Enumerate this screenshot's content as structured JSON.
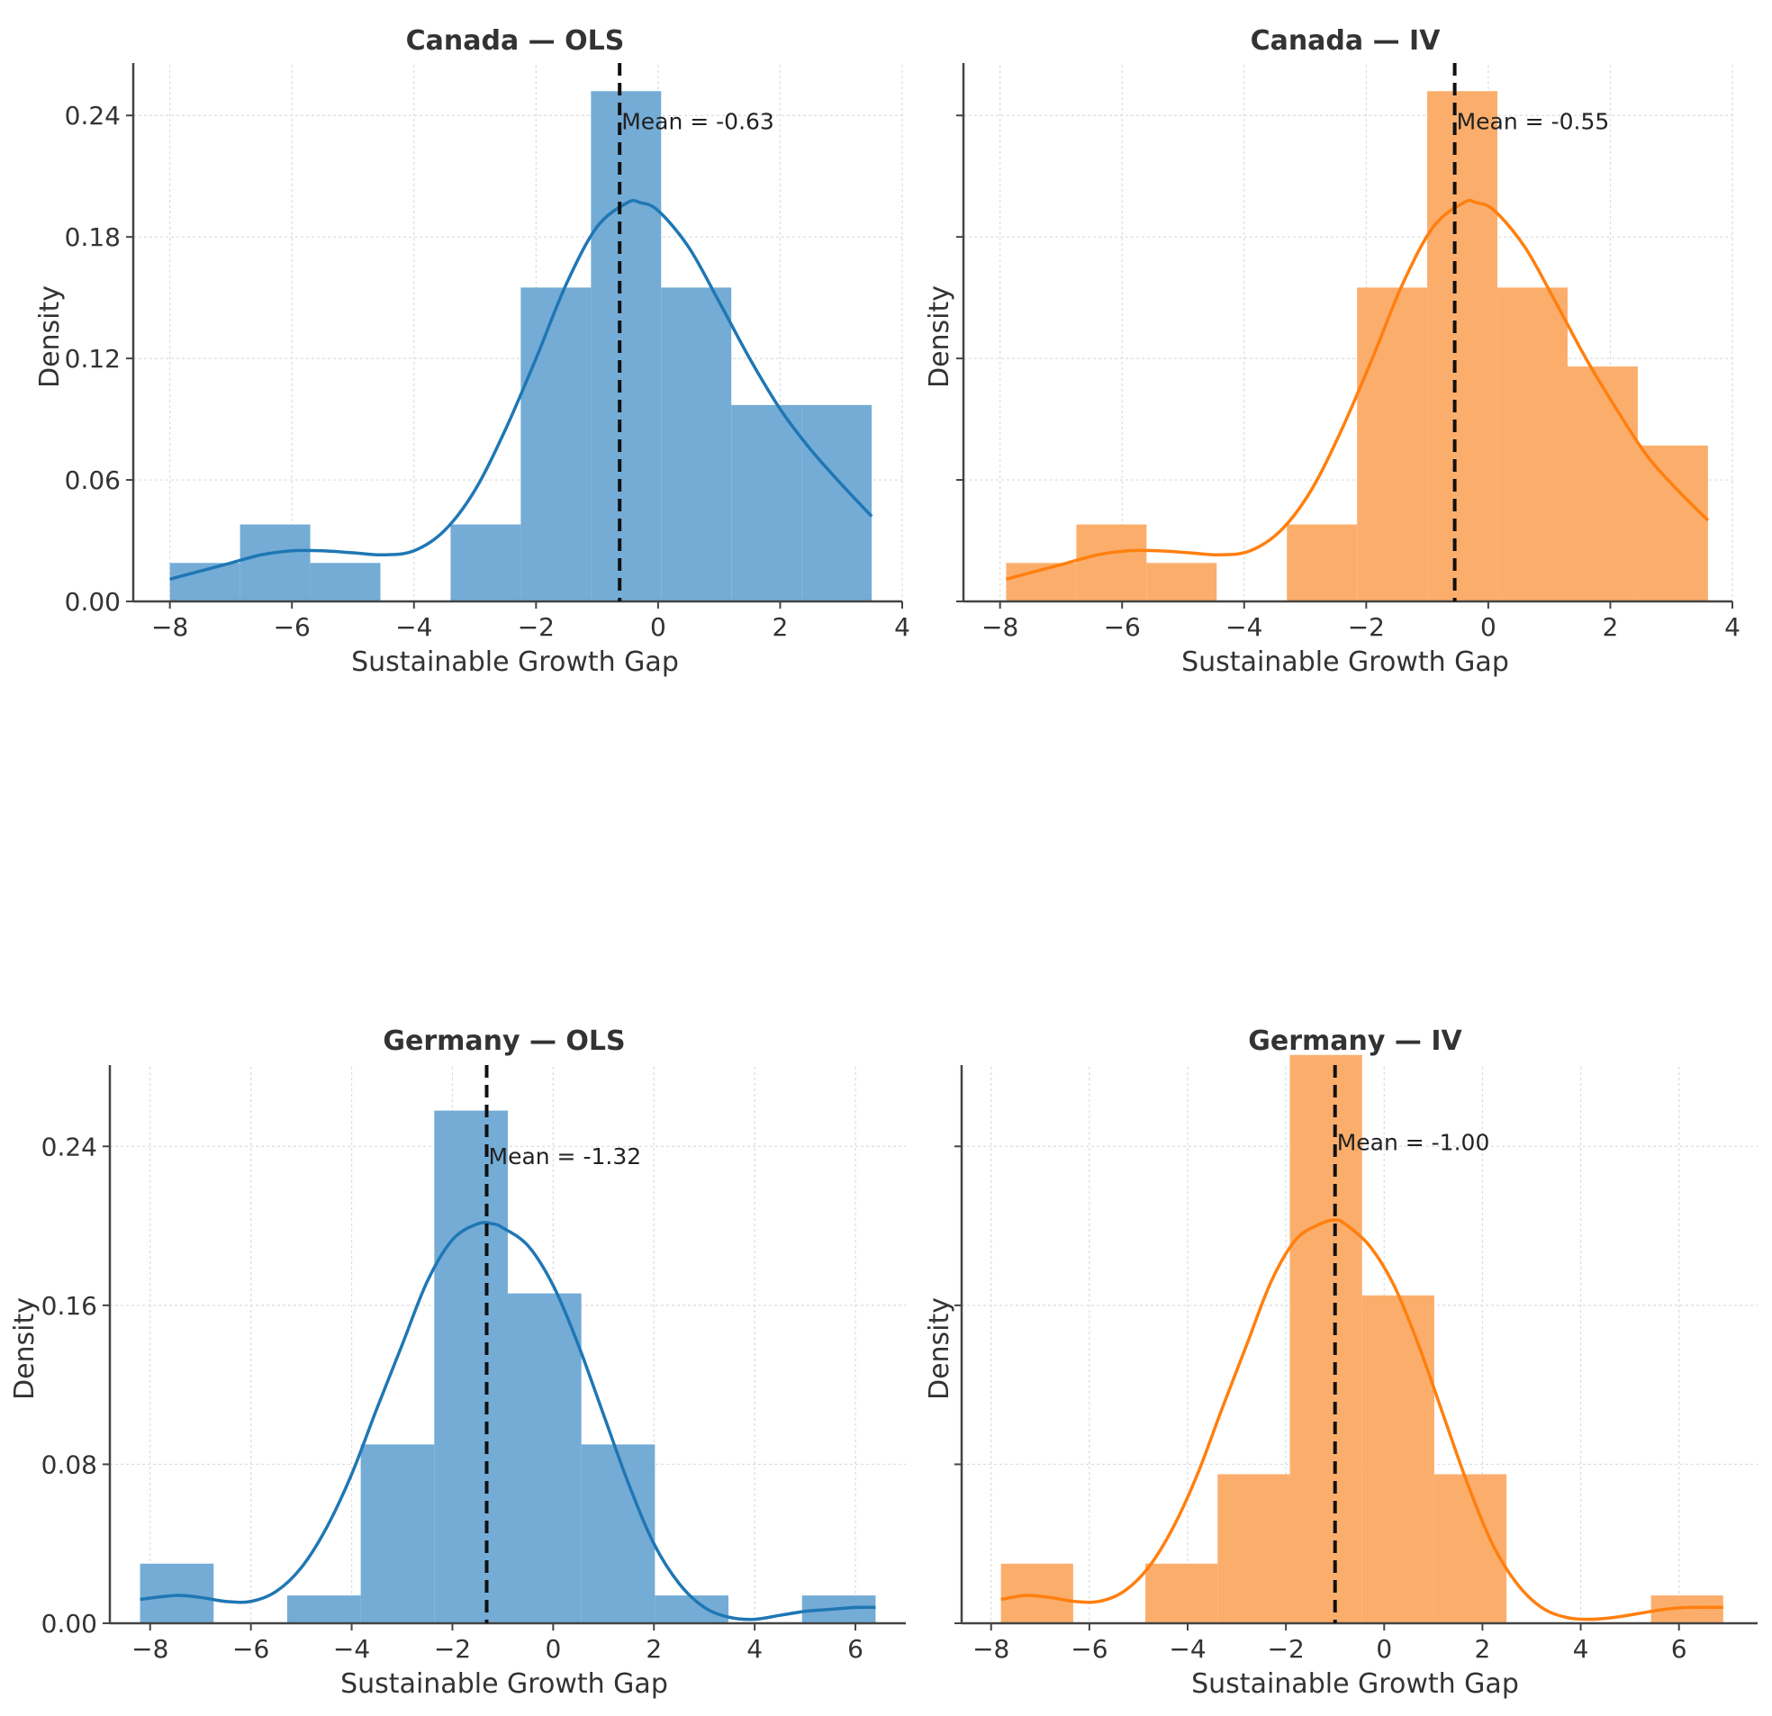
{
  "chart_data": [
    {
      "type": "histogram",
      "title": "Canada — OLS",
      "xlabel": "Sustainable Growth Gap",
      "ylabel": "Density",
      "color": "#1f77b4",
      "bar_color": "#74acd6",
      "xlim": [
        -8.6,
        4.0
      ],
      "ylim": [
        0,
        0.265
      ],
      "xticks": [
        -8,
        -6,
        -4,
        -2,
        0,
        2,
        4
      ],
      "xtick_labels": [
        "−8",
        "−6",
        "−4",
        "−2",
        "0",
        "2",
        "4"
      ],
      "yticks": [
        0.0,
        0.06,
        0.12,
        0.18,
        0.24
      ],
      "ytick_labels": [
        "0.00",
        "0.06",
        "0.12",
        "0.18",
        "0.24"
      ],
      "show_ytick_labels": true,
      "grid": true,
      "bins": [
        {
          "x0": -8.0,
          "x1": -6.85,
          "density": 0.019
        },
        {
          "x0": -6.85,
          "x1": -5.7,
          "density": 0.038
        },
        {
          "x0": -5.7,
          "x1": -4.55,
          "density": 0.019
        },
        {
          "x0": -4.55,
          "x1": -3.4,
          "density": 0.0
        },
        {
          "x0": -3.4,
          "x1": -2.25,
          "density": 0.038
        },
        {
          "x0": -2.25,
          "x1": -1.1,
          "density": 0.155
        },
        {
          "x0": -1.1,
          "x1": 0.05,
          "density": 0.252
        },
        {
          "x0": 0.05,
          "x1": 1.2,
          "density": 0.155
        },
        {
          "x0": 1.2,
          "x1": 2.35,
          "density": 0.097
        },
        {
          "x0": 2.35,
          "x1": 3.5,
          "density": 0.097
        }
      ],
      "kde": {
        "x": [
          -8.0,
          -7.5,
          -7.0,
          -6.5,
          -6.0,
          -5.5,
          -5.0,
          -4.5,
          -4.0,
          -3.5,
          -3.0,
          -2.5,
          -2.0,
          -1.5,
          -1.0,
          -0.5,
          -0.3,
          0.0,
          0.5,
          1.0,
          1.5,
          2.0,
          2.5,
          3.0,
          3.5
        ],
        "y": [
          0.011,
          0.015,
          0.019,
          0.023,
          0.025,
          0.025,
          0.024,
          0.023,
          0.025,
          0.035,
          0.055,
          0.085,
          0.12,
          0.157,
          0.185,
          0.197,
          0.197,
          0.193,
          0.175,
          0.148,
          0.12,
          0.095,
          0.075,
          0.058,
          0.042
        ]
      },
      "mean": -0.63,
      "mean_label": "Mean = -0.63"
    },
    {
      "type": "histogram",
      "title": "Canada — IV",
      "xlabel": "Sustainable Growth Gap",
      "ylabel": "Density",
      "color": "#ff7f0e",
      "bar_color": "#fbae6c",
      "xlim": [
        -8.6,
        4.0
      ],
      "ylim": [
        0,
        0.265
      ],
      "xticks": [
        -8,
        -6,
        -4,
        -2,
        0,
        2,
        4
      ],
      "xtick_labels": [
        "−8",
        "−6",
        "−4",
        "−2",
        "0",
        "2",
        "4"
      ],
      "yticks": [
        0.0,
        0.06,
        0.12,
        0.18,
        0.24
      ],
      "ytick_labels": [
        "0.00",
        "0.06",
        "0.12",
        "0.18",
        "0.24"
      ],
      "show_ytick_labels": false,
      "grid": true,
      "bins": [
        {
          "x0": -7.9,
          "x1": -6.75,
          "density": 0.019
        },
        {
          "x0": -6.75,
          "x1": -5.6,
          "density": 0.038
        },
        {
          "x0": -5.6,
          "x1": -4.45,
          "density": 0.019
        },
        {
          "x0": -4.45,
          "x1": -3.3,
          "density": 0.0
        },
        {
          "x0": -3.3,
          "x1": -2.15,
          "density": 0.038
        },
        {
          "x0": -2.15,
          "x1": -1.0,
          "density": 0.155
        },
        {
          "x0": -1.0,
          "x1": 0.15,
          "density": 0.252
        },
        {
          "x0": 0.15,
          "x1": 1.3,
          "density": 0.155
        },
        {
          "x0": 1.3,
          "x1": 2.45,
          "density": 0.116
        },
        {
          "x0": 2.45,
          "x1": 3.6,
          "density": 0.077
        }
      ],
      "kde": {
        "x": [
          -7.9,
          -7.4,
          -6.9,
          -6.4,
          -5.9,
          -5.4,
          -4.9,
          -4.4,
          -3.9,
          -3.4,
          -2.9,
          -2.4,
          -1.9,
          -1.4,
          -0.9,
          -0.4,
          -0.2,
          0.1,
          0.6,
          1.1,
          1.6,
          2.1,
          2.6,
          3.1,
          3.6
        ],
        "y": [
          0.011,
          0.015,
          0.019,
          0.023,
          0.025,
          0.025,
          0.024,
          0.023,
          0.025,
          0.035,
          0.055,
          0.085,
          0.12,
          0.157,
          0.185,
          0.197,
          0.197,
          0.193,
          0.175,
          0.148,
          0.12,
          0.095,
          0.072,
          0.055,
          0.04
        ]
      },
      "mean": -0.55,
      "mean_label": "Mean = -0.55"
    },
    {
      "type": "histogram",
      "title": "Germany — OLS",
      "xlabel": "Sustainable Growth Gap",
      "ylabel": "Density",
      "color": "#1f77b4",
      "bar_color": "#74acd6",
      "xlim": [
        -8.8,
        7.0
      ],
      "ylim": [
        0,
        0.28
      ],
      "xticks": [
        -8,
        -6,
        -4,
        -2,
        0,
        2,
        4,
        6
      ],
      "xtick_labels": [
        "−8",
        "−6",
        "−4",
        "−2",
        "0",
        "2",
        "4",
        "6"
      ],
      "yticks": [
        0.0,
        0.08,
        0.16,
        0.24
      ],
      "ytick_labels": [
        "0.00",
        "0.08",
        "0.16",
        "0.24"
      ],
      "show_ytick_labels": true,
      "grid": true,
      "bins": [
        {
          "x0": -8.2,
          "x1": -6.74,
          "density": 0.03
        },
        {
          "x0": -6.74,
          "x1": -5.28,
          "density": 0.0
        },
        {
          "x0": -5.28,
          "x1": -3.82,
          "density": 0.014
        },
        {
          "x0": -3.82,
          "x1": -2.36,
          "density": 0.09
        },
        {
          "x0": -2.36,
          "x1": -0.9,
          "density": 0.258
        },
        {
          "x0": -0.9,
          "x1": 0.56,
          "density": 0.166
        },
        {
          "x0": 0.56,
          "x1": 2.02,
          "density": 0.09
        },
        {
          "x0": 2.02,
          "x1": 3.48,
          "density": 0.014
        },
        {
          "x0": 3.48,
          "x1": 4.94,
          "density": 0.0
        },
        {
          "x0": 4.94,
          "x1": 6.4,
          "density": 0.014
        }
      ],
      "kde": {
        "x": [
          -8.2,
          -7.5,
          -7.0,
          -6.5,
          -6.0,
          -5.5,
          -5.0,
          -4.5,
          -4.0,
          -3.5,
          -3.0,
          -2.5,
          -2.0,
          -1.5,
          -1.2,
          -1.0,
          -0.5,
          0.0,
          0.5,
          1.0,
          1.5,
          2.0,
          2.5,
          3.0,
          3.5,
          4.0,
          4.5,
          5.0,
          5.5,
          6.0,
          6.4
        ],
        "y": [
          0.012,
          0.014,
          0.013,
          0.011,
          0.011,
          0.016,
          0.028,
          0.048,
          0.075,
          0.108,
          0.14,
          0.172,
          0.193,
          0.201,
          0.201,
          0.199,
          0.19,
          0.17,
          0.14,
          0.105,
          0.07,
          0.04,
          0.02,
          0.008,
          0.003,
          0.002,
          0.004,
          0.006,
          0.007,
          0.008,
          0.008
        ]
      },
      "mean": -1.32,
      "mean_label": "Mean = -1.32"
    },
    {
      "type": "histogram",
      "title": "Germany — IV",
      "xlabel": "Sustainable Growth Gap",
      "ylabel": "Density",
      "color": "#ff7f0e",
      "bar_color": "#fbae6c",
      "xlim": [
        -8.6,
        7.6
      ],
      "ylim": [
        0,
        0.28
      ],
      "xticks": [
        -8,
        -6,
        -4,
        -2,
        0,
        2,
        4,
        6
      ],
      "xtick_labels": [
        "−8",
        "−6",
        "−4",
        "−2",
        "0",
        "2",
        "4",
        "6"
      ],
      "yticks": [
        0.0,
        0.08,
        0.16,
        0.24
      ],
      "ytick_labels": [
        "0.00",
        "0.08",
        "0.16",
        "0.24"
      ],
      "show_ytick_labels": false,
      "grid": true,
      "bins": [
        {
          "x0": -7.8,
          "x1": -6.33,
          "density": 0.03
        },
        {
          "x0": -6.33,
          "x1": -4.86,
          "density": 0.0
        },
        {
          "x0": -4.86,
          "x1": -3.39,
          "density": 0.03
        },
        {
          "x0": -3.39,
          "x1": -1.92,
          "density": 0.075
        },
        {
          "x0": -1.92,
          "x1": -0.45,
          "density": 0.286
        },
        {
          "x0": -0.45,
          "x1": 1.02,
          "density": 0.165
        },
        {
          "x0": 1.02,
          "x1": 2.49,
          "density": 0.075
        },
        {
          "x0": 2.49,
          "x1": 3.96,
          "density": 0.0
        },
        {
          "x0": 3.96,
          "x1": 5.43,
          "density": 0.0
        },
        {
          "x0": 5.43,
          "x1": 6.9,
          "density": 0.014
        }
      ],
      "kde": {
        "x": [
          -7.8,
          -7.3,
          -6.8,
          -6.3,
          -5.8,
          -5.3,
          -4.8,
          -4.3,
          -3.8,
          -3.3,
          -2.8,
          -2.3,
          -1.8,
          -1.3,
          -1.0,
          -0.8,
          -0.3,
          0.2,
          0.7,
          1.2,
          1.7,
          2.2,
          2.7,
          3.2,
          3.7,
          4.2,
          4.7,
          5.2,
          5.7,
          6.2,
          6.9
        ],
        "y": [
          0.012,
          0.014,
          0.013,
          0.011,
          0.011,
          0.016,
          0.028,
          0.048,
          0.075,
          0.108,
          0.14,
          0.172,
          0.193,
          0.201,
          0.203,
          0.201,
          0.19,
          0.17,
          0.14,
          0.105,
          0.07,
          0.04,
          0.02,
          0.008,
          0.003,
          0.002,
          0.003,
          0.005,
          0.007,
          0.008,
          0.008
        ]
      },
      "mean": -1.0,
      "mean_label": "Mean = -1.00"
    }
  ]
}
